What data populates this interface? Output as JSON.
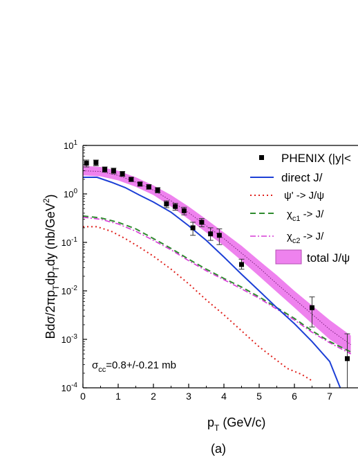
{
  "chart_data": {
    "type": "line",
    "xlabel": "p",
    "xlabel_sub": "T",
    "xlabel_unit": " (GeV/c)",
    "ylabel": "Bdσ/2πp",
    "ylabel_rest_1": "dp",
    "ylabel_rest_2": "dy (nb/GeV",
    "ylabel_rest_3": ")",
    "ylabel_sub": "T",
    "ylabel_sup": "2",
    "caption": "(a)",
    "xlim": [
      0,
      7.6
    ],
    "ylim": [
      0.0001,
      10
    ],
    "yscale": "log",
    "x_ticks": [
      "0",
      "1",
      "2",
      "3",
      "4",
      "5",
      "6",
      "7"
    ],
    "y_ticks": [
      {
        "base": "10",
        "exp": "1"
      },
      {
        "base": "10",
        "exp": "0"
      },
      {
        "base": "10",
        "exp": "-1"
      },
      {
        "base": "10",
        "exp": "-2"
      },
      {
        "base": "10",
        "exp": "-3"
      },
      {
        "base": "10",
        "exp": "-4"
      }
    ],
    "annotation": {
      "prefix": "σ",
      "sub": "cc",
      "value": "=0.8+/-0.21 mb"
    },
    "legend": {
      "position": "top-right",
      "entries": [
        {
          "label": "PHENIX (|y|<",
          "kind": "points"
        },
        {
          "label": "direct J/",
          "kind": "line"
        },
        {
          "label": "ψ' ->  J/ψ",
          "kind": "dotted"
        },
        {
          "label_main": "χ",
          "label_sub": "c1",
          "label_rest": " ->  J/",
          "kind": "dashed"
        },
        {
          "label_main": "χ",
          "label_sub": "c2",
          "label_rest": " ->  J/",
          "kind": "dashdot"
        },
        {
          "label": "total J/ψ",
          "kind": "band"
        }
      ]
    },
    "colors": {
      "data_points": "#000000",
      "direct": "#1c3fd6",
      "psi_prime": "#e0201b",
      "chi_c1": "#2e8b2e",
      "chi_c2": "#d63ad6",
      "total_band": "#ee82ee",
      "total_line": "#7a1f7a"
    },
    "series": [
      {
        "key": "phenix",
        "kind": "points",
        "x": [
          0.1,
          0.37,
          0.62,
          0.87,
          1.12,
          1.37,
          1.62,
          1.87,
          2.12,
          2.37,
          2.62,
          2.87,
          3.12,
          3.37,
          3.62,
          3.87,
          4.5,
          6.5,
          7.5
        ],
        "y": [
          4.3,
          4.4,
          3.2,
          3.0,
          2.6,
          2.0,
          1.6,
          1.4,
          1.2,
          0.62,
          0.55,
          0.45,
          0.2,
          0.26,
          0.15,
          0.14,
          0.035,
          0.0045,
          0.0004
        ],
        "err_lo": [
          3.6,
          3.8,
          2.8,
          2.6,
          2.3,
          1.8,
          1.45,
          1.25,
          1.05,
          0.52,
          0.46,
          0.37,
          0.14,
          0.21,
          0.11,
          0.09,
          0.028,
          0.0018,
          0.0001
        ],
        "err_hi": [
          5.0,
          5.0,
          3.6,
          3.4,
          2.9,
          2.2,
          1.75,
          1.55,
          1.35,
          0.72,
          0.64,
          0.53,
          0.26,
          0.31,
          0.2,
          0.19,
          0.045,
          0.0075,
          0.0013
        ]
      },
      {
        "key": "direct",
        "kind": "line",
        "x": [
          0,
          0.4,
          0.8,
          1.2,
          1.6,
          2.0,
          2.5,
          3.0,
          3.5,
          4.0,
          4.5,
          5.0,
          5.5,
          6.0,
          6.5,
          7.0,
          7.3
        ],
        "y": [
          2.2,
          2.2,
          1.75,
          1.35,
          0.95,
          0.68,
          0.42,
          0.22,
          0.11,
          0.05,
          0.022,
          0.01,
          0.0045,
          0.0021,
          0.0009,
          0.00035,
          0.0001
        ]
      },
      {
        "key": "psi_prime",
        "kind": "dotted",
        "x": [
          0,
          0.4,
          0.8,
          1.2,
          1.6,
          2.0,
          2.5,
          3.0,
          3.5,
          4.0,
          4.5,
          5.0,
          5.4,
          5.8,
          6.2,
          6.5
        ],
        "y": [
          0.21,
          0.21,
          0.17,
          0.12,
          0.08,
          0.052,
          0.028,
          0.014,
          0.0065,
          0.0032,
          0.0015,
          0.0007,
          0.00042,
          0.00025,
          0.00019,
          0.00014
        ]
      },
      {
        "key": "chi_c1",
        "kind": "dashed",
        "x": [
          0,
          0.5,
          1.0,
          1.5,
          2.0,
          2.5,
          3.0,
          3.5,
          4.0,
          4.5,
          5.0,
          5.5,
          6.0,
          6.5,
          7.0,
          7.6
        ],
        "y": [
          0.35,
          0.32,
          0.26,
          0.19,
          0.12,
          0.075,
          0.045,
          0.028,
          0.018,
          0.012,
          0.0075,
          0.0045,
          0.0027,
          0.0015,
          0.0009,
          0.00055
        ]
      },
      {
        "key": "chi_c2",
        "kind": "dashdot",
        "x": [
          0,
          0.5,
          1.0,
          1.5,
          2.0,
          2.5,
          3.0,
          3.5,
          4.0,
          4.5,
          5.0,
          5.5,
          6.0,
          6.5,
          7.0,
          7.6
        ],
        "y": [
          0.33,
          0.3,
          0.24,
          0.17,
          0.11,
          0.07,
          0.042,
          0.026,
          0.017,
          0.011,
          0.007,
          0.0042,
          0.0025,
          0.0014,
          0.00085,
          0.0005
        ]
      },
      {
        "key": "total",
        "kind": "band",
        "x": [
          0,
          0.5,
          1.0,
          1.5,
          2.0,
          2.5,
          3.0,
          3.5,
          4.0,
          4.5,
          5.0,
          5.5,
          6.0,
          6.5,
          7.0,
          7.6
        ],
        "y_lo": [
          2.4,
          2.3,
          1.9,
          1.4,
          0.95,
          0.55,
          0.3,
          0.16,
          0.085,
          0.042,
          0.02,
          0.0095,
          0.0045,
          0.0021,
          0.001,
          0.0005
        ],
        "y_hi": [
          3.8,
          3.6,
          3.0,
          2.2,
          1.5,
          0.95,
          0.55,
          0.3,
          0.16,
          0.085,
          0.042,
          0.021,
          0.01,
          0.005,
          0.0025,
          0.0012
        ],
        "y_mid": [
          3.0,
          2.9,
          2.4,
          1.75,
          1.2,
          0.72,
          0.41,
          0.22,
          0.12,
          0.06,
          0.03,
          0.014,
          0.0068,
          0.0033,
          0.0016,
          0.00078
        ]
      }
    ]
  }
}
